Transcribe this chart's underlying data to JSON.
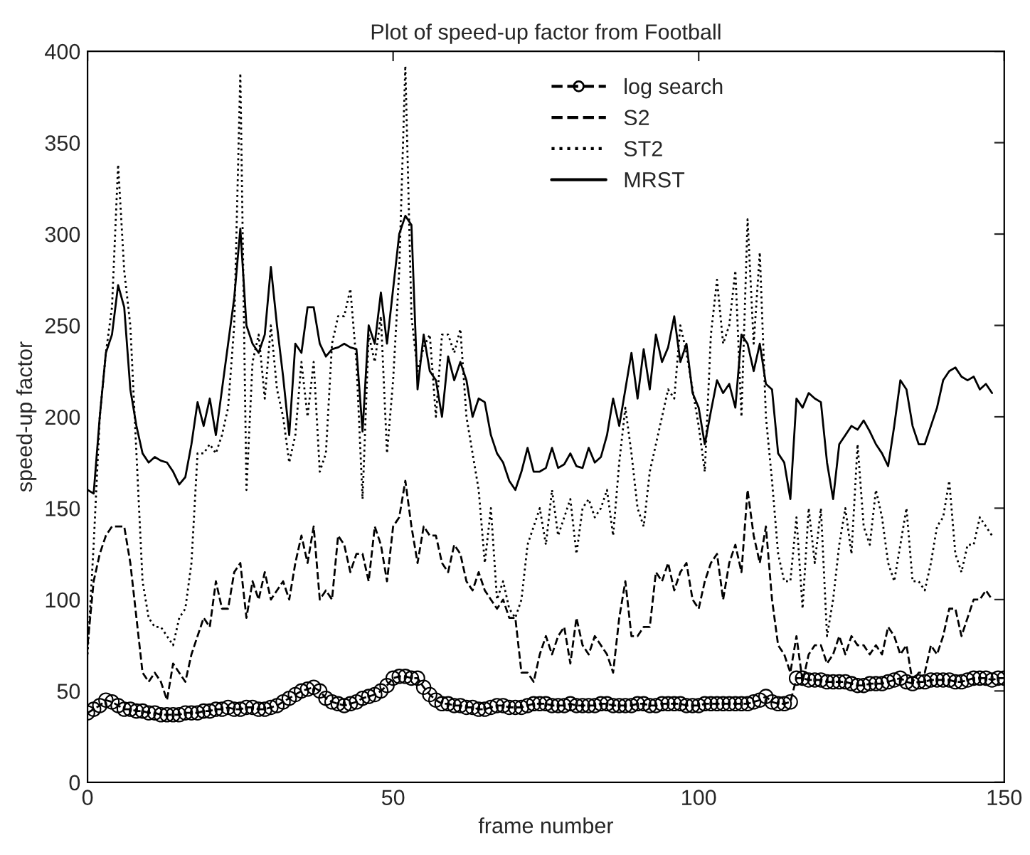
{
  "chart_data": {
    "type": "line",
    "title": "Plot of speed-up factor from Football",
    "xlabel": "frame number",
    "ylabel": "speed-up factor",
    "xlim": [
      0,
      150
    ],
    "xticks": [
      0,
      50,
      100,
      150
    ],
    "ylim": [
      0,
      400
    ],
    "yticks": [
      0,
      50,
      100,
      150,
      200,
      250,
      300,
      350,
      400
    ],
    "grid": false,
    "legend": "top",
    "series": [
      {
        "name": "log search",
        "color": "#000000",
        "marker": "circle",
        "line_style": "dashed",
        "x": [
          0,
          1,
          2,
          3,
          4,
          5,
          6,
          7,
          8,
          9,
          10,
          11,
          12,
          13,
          14,
          15,
          16,
          17,
          18,
          19,
          20,
          21,
          22,
          23,
          24,
          25,
          26,
          27,
          28,
          29,
          30,
          31,
          32,
          33,
          34,
          35,
          36,
          37,
          38,
          39,
          40,
          41,
          42,
          43,
          44,
          45,
          46,
          47,
          48,
          49,
          50,
          51,
          52,
          53,
          54,
          55,
          56,
          57,
          58,
          59,
          60,
          61,
          62,
          63,
          64,
          65,
          66,
          67,
          68,
          69,
          70,
          71,
          72,
          73,
          74,
          75,
          76,
          77,
          78,
          79,
          80,
          81,
          82,
          83,
          84,
          85,
          86,
          87,
          88,
          89,
          90,
          91,
          92,
          93,
          94,
          95,
          96,
          97,
          98,
          99,
          100,
          101,
          102,
          103,
          104,
          105,
          106,
          107,
          108,
          109,
          110,
          111,
          112,
          113,
          114,
          115,
          116,
          117,
          118,
          119,
          120,
          121,
          122,
          123,
          124,
          125,
          126,
          127,
          128,
          129,
          130,
          131,
          132,
          133,
          134,
          135,
          136,
          137,
          138,
          139,
          140,
          141,
          142,
          143,
          144,
          145,
          146,
          147,
          148,
          149,
          150
        ],
        "values": [
          38,
          40,
          42,
          45,
          44,
          42,
          40,
          40,
          39,
          39,
          38,
          38,
          37,
          37,
          37,
          37,
          38,
          38,
          38,
          39,
          39,
          40,
          40,
          41,
          40,
          40,
          41,
          41,
          40,
          40,
          41,
          42,
          44,
          46,
          48,
          50,
          51,
          52,
          50,
          46,
          44,
          43,
          42,
          43,
          44,
          46,
          47,
          48,
          50,
          53,
          57,
          58,
          58,
          57,
          57,
          52,
          48,
          45,
          43,
          43,
          42,
          42,
          41,
          41,
          40,
          40,
          41,
          42,
          42,
          41,
          41,
          41,
          42,
          43,
          43,
          43,
          42,
          42,
          42,
          43,
          42,
          42,
          42,
          42,
          43,
          43,
          42,
          42,
          42,
          42,
          43,
          43,
          42,
          42,
          43,
          43,
          43,
          43,
          42,
          42,
          42,
          43,
          43,
          43,
          43,
          43,
          43,
          43,
          43,
          44,
          45,
          47,
          44,
          43,
          43,
          44,
          57,
          57,
          56,
          56,
          56,
          55,
          55,
          55,
          55,
          54,
          53,
          53,
          54,
          54,
          54,
          55,
          56,
          57,
          55,
          54,
          55,
          55,
          56,
          56,
          56,
          56,
          55,
          55,
          56,
          57,
          57,
          57,
          56,
          57,
          57
        ]
      },
      {
        "name": "S2",
        "color": "#000000",
        "marker": "none",
        "line_style": "dashed",
        "x": [
          0,
          1,
          2,
          3,
          4,
          5,
          6,
          7,
          8,
          9,
          10,
          11,
          12,
          13,
          14,
          15,
          16,
          17,
          18,
          19,
          20,
          21,
          22,
          23,
          24,
          25,
          26,
          27,
          28,
          29,
          30,
          31,
          32,
          33,
          34,
          35,
          36,
          37,
          38,
          39,
          40,
          41,
          42,
          43,
          44,
          45,
          46,
          47,
          48,
          49,
          50,
          51,
          52,
          53,
          54,
          55,
          56,
          57,
          58,
          59,
          60,
          61,
          62,
          63,
          64,
          65,
          66,
          67,
          68,
          69,
          70,
          71,
          72,
          73,
          74,
          75,
          76,
          77,
          78,
          79,
          80,
          81,
          82,
          83,
          84,
          85,
          86,
          87,
          88,
          89,
          90,
          91,
          92,
          93,
          94,
          95,
          96,
          97,
          98,
          99,
          100,
          101,
          102,
          103,
          104,
          105,
          106,
          107,
          108,
          109,
          110,
          111,
          112,
          113,
          114,
          115,
          116,
          117,
          118,
          119,
          120,
          121,
          122,
          123,
          124,
          125,
          126,
          127,
          128,
          129,
          130,
          131,
          132,
          133,
          134,
          135,
          136,
          137,
          138,
          139,
          140,
          141,
          142,
          143,
          144,
          145,
          146,
          147,
          148
        ],
        "values": [
          75,
          110,
          125,
          135,
          140,
          140,
          140,
          120,
          90,
          60,
          55,
          60,
          55,
          45,
          65,
          60,
          55,
          70,
          80,
          90,
          85,
          110,
          95,
          95,
          115,
          120,
          90,
          110,
          100,
          115,
          100,
          105,
          110,
          100,
          120,
          135,
          120,
          140,
          100,
          105,
          100,
          135,
          130,
          115,
          125,
          125,
          110,
          140,
          130,
          110,
          140,
          145,
          165,
          140,
          120,
          140,
          135,
          135,
          120,
          115,
          130,
          125,
          110,
          105,
          115,
          105,
          100,
          95,
          100,
          90,
          90,
          60,
          60,
          55,
          70,
          80,
          70,
          80,
          85,
          65,
          90,
          75,
          70,
          80,
          75,
          70,
          60,
          90,
          110,
          80,
          80,
          85,
          85,
          115,
          110,
          120,
          105,
          115,
          120,
          100,
          95,
          110,
          120,
          125,
          100,
          120,
          130,
          115,
          160,
          135,
          120,
          140,
          100,
          75,
          70,
          60,
          80,
          55,
          70,
          75,
          75,
          65,
          70,
          80,
          70,
          80,
          75,
          75,
          70,
          75,
          70,
          85,
          80,
          70,
          75,
          55,
          60,
          60,
          75,
          70,
          80,
          95,
          95,
          80,
          90,
          100,
          100,
          105,
          100
        ]
      },
      {
        "name": "ST2",
        "color": "#000000",
        "marker": "none",
        "line_style": "dotted",
        "x": [
          0,
          1,
          2,
          3,
          4,
          5,
          6,
          7,
          8,
          9,
          10,
          11,
          12,
          13,
          14,
          15,
          16,
          17,
          18,
          19,
          20,
          21,
          22,
          23,
          24,
          25,
          26,
          27,
          28,
          29,
          30,
          31,
          32,
          33,
          34,
          35,
          36,
          37,
          38,
          39,
          40,
          41,
          42,
          43,
          44,
          45,
          46,
          47,
          48,
          49,
          50,
          51,
          52,
          53,
          54,
          55,
          56,
          57,
          58,
          59,
          60,
          61,
          62,
          63,
          64,
          65,
          66,
          67,
          68,
          69,
          70,
          71,
          72,
          73,
          74,
          75,
          76,
          77,
          78,
          79,
          80,
          81,
          82,
          83,
          84,
          85,
          86,
          87,
          88,
          89,
          90,
          91,
          92,
          93,
          94,
          95,
          96,
          97,
          98,
          99,
          100,
          101,
          102,
          103,
          104,
          105,
          106,
          107,
          108,
          109,
          110,
          111,
          112,
          113,
          114,
          115,
          116,
          117,
          118,
          119,
          120,
          121,
          122,
          123,
          124,
          125,
          126,
          127,
          128,
          129,
          130,
          131,
          132,
          133,
          134,
          135,
          136,
          137,
          138,
          139,
          140,
          141,
          142,
          143,
          144,
          145,
          146,
          147,
          148
        ],
        "values": [
          70,
          130,
          200,
          235,
          260,
          338,
          280,
          250,
          180,
          110,
          90,
          85,
          85,
          80,
          75,
          90,
          95,
          120,
          180,
          180,
          185,
          180,
          190,
          205,
          250,
          388,
          160,
          230,
          245,
          210,
          250,
          215,
          200,
          175,
          190,
          230,
          200,
          230,
          170,
          180,
          240,
          255,
          255,
          270,
          230,
          155,
          245,
          230,
          255,
          180,
          220,
          280,
          392,
          255,
          225,
          238,
          245,
          200,
          245,
          245,
          235,
          248,
          200,
          180,
          160,
          120,
          150,
          100,
          110,
          95,
          90,
          100,
          130,
          140,
          150,
          130,
          160,
          135,
          145,
          155,
          125,
          150,
          155,
          145,
          150,
          160,
          135,
          175,
          205,
          180,
          150,
          140,
          170,
          185,
          200,
          215,
          210,
          250,
          235,
          215,
          195,
          170,
          245,
          275,
          240,
          250,
          280,
          200,
          308,
          240,
          290,
          200,
          165,
          125,
          110,
          110,
          145,
          95,
          150,
          120,
          150,
          80,
          100,
          130,
          150,
          125,
          185,
          140,
          130,
          160,
          145,
          120,
          110,
          130,
          150,
          110,
          110,
          105,
          120,
          140,
          145,
          165,
          125,
          115,
          130,
          130,
          145,
          140,
          135
        ]
      },
      {
        "name": "MRST",
        "color": "#000000",
        "marker": "none",
        "line_style": "solid",
        "x": [
          0,
          1,
          2,
          3,
          4,
          5,
          6,
          7,
          8,
          9,
          10,
          11,
          12,
          13,
          14,
          15,
          16,
          17,
          18,
          19,
          20,
          21,
          22,
          23,
          24,
          25,
          26,
          27,
          28,
          29,
          30,
          31,
          32,
          33,
          34,
          35,
          36,
          37,
          38,
          39,
          40,
          41,
          42,
          43,
          44,
          45,
          46,
          47,
          48,
          49,
          50,
          51,
          52,
          53,
          54,
          55,
          56,
          57,
          58,
          59,
          60,
          61,
          62,
          63,
          64,
          65,
          66,
          67,
          68,
          69,
          70,
          71,
          72,
          73,
          74,
          75,
          76,
          77,
          78,
          79,
          80,
          81,
          82,
          83,
          84,
          85,
          86,
          87,
          88,
          89,
          90,
          91,
          92,
          93,
          94,
          95,
          96,
          97,
          98,
          99,
          100,
          101,
          102,
          103,
          104,
          105,
          106,
          107,
          108,
          109,
          110,
          111,
          112,
          113,
          114,
          115,
          116,
          117,
          118,
          119,
          120,
          121,
          122,
          123,
          124,
          125,
          126,
          127,
          128,
          129,
          130,
          131,
          132,
          133,
          134,
          135,
          136,
          137,
          138,
          139,
          140,
          141,
          142,
          143,
          144,
          145,
          146,
          147,
          148
        ],
        "values": [
          160,
          158,
          200,
          235,
          245,
          272,
          260,
          215,
          195,
          180,
          175,
          178,
          176,
          175,
          170,
          163,
          167,
          185,
          208,
          195,
          210,
          190,
          215,
          240,
          265,
          303,
          250,
          240,
          235,
          245,
          282,
          250,
          222,
          190,
          240,
          235,
          260,
          260,
          240,
          233,
          237,
          238,
          240,
          238,
          237,
          192,
          250,
          240,
          268,
          240,
          270,
          300,
          310,
          305,
          215,
          245,
          225,
          220,
          200,
          233,
          220,
          230,
          220,
          200,
          210,
          208,
          190,
          180,
          175,
          165,
          160,
          170,
          183,
          170,
          170,
          172,
          183,
          172,
          174,
          180,
          173,
          172,
          183,
          175,
          178,
          190,
          210,
          195,
          215,
          235,
          210,
          237,
          215,
          245,
          230,
          238,
          255,
          230,
          240,
          213,
          205,
          185,
          203,
          220,
          213,
          218,
          205,
          245,
          240,
          225,
          240,
          218,
          215,
          180,
          175,
          155,
          210,
          205,
          213,
          210,
          208,
          175,
          155,
          185,
          190,
          195,
          193,
          198,
          192,
          185,
          180,
          173,
          195,
          220,
          215,
          195,
          185,
          185,
          195,
          205,
          220,
          225,
          227,
          222,
          220,
          222,
          215,
          218,
          213
        ]
      }
    ]
  }
}
